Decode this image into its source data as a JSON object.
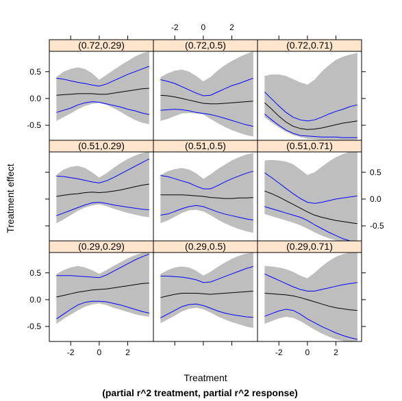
{
  "chart_data": {
    "type": "line",
    "layout": "3x3 trellis",
    "xlabel": "Treatment",
    "xlabel_sub": "(partial r^2 treatment, partial r^2 response)",
    "ylabel": "Treatment effect",
    "xlim": [
      -3.5,
      3.8
    ],
    "ylim": [
      -0.78,
      0.88
    ],
    "x_ticks": [
      -2,
      0,
      2
    ],
    "y_ticks": [
      -0.5,
      0.0,
      0.5
    ],
    "x_tick_labels": [
      "-2",
      "0",
      "2"
    ],
    "y_tick_labels": [
      "-0.5",
      "0.0",
      "0.5"
    ],
    "colors": {
      "band": "#bebebe",
      "estimate": "#000000",
      "bounds": "#0000ff",
      "strip": "#ffe5cc"
    },
    "x": [
      -3.0,
      -2.5,
      -2.0,
      -1.5,
      -1.0,
      -0.5,
      0.0,
      0.5,
      1.0,
      1.5,
      2.0,
      2.5,
      3.0,
      3.5
    ],
    "panels": [
      {
        "strip": "(0.72,0.29)",
        "estimate": [
          0.06,
          0.07,
          0.08,
          0.09,
          0.09,
          0.09,
          0.08,
          0.08,
          0.1,
          0.12,
          0.14,
          0.16,
          0.18,
          0.19
        ],
        "upper": [
          0.38,
          0.36,
          0.33,
          0.3,
          0.28,
          0.25,
          0.23,
          0.27,
          0.33,
          0.39,
          0.45,
          0.5,
          0.55,
          0.6
        ],
        "lower": [
          -0.26,
          -0.22,
          -0.18,
          -0.12,
          -0.08,
          -0.06,
          -0.07,
          -0.1,
          -0.13,
          -0.16,
          -0.2,
          -0.23,
          -0.27,
          -0.3
        ],
        "band_upper": [
          0.4,
          0.5,
          0.55,
          0.58,
          0.55,
          0.47,
          0.35,
          0.44,
          0.53,
          0.62,
          0.7,
          0.78,
          0.84,
          0.88
        ],
        "band_lower": [
          -0.42,
          -0.35,
          -0.28,
          -0.2,
          -0.14,
          -0.1,
          -0.08,
          -0.12,
          -0.18,
          -0.25,
          -0.33,
          -0.4,
          -0.45,
          -0.48
        ]
      },
      {
        "strip": "(0.72,0.5)",
        "estimate": [
          0.06,
          0.05,
          0.03,
          0.0,
          -0.03,
          -0.06,
          -0.09,
          -0.1,
          -0.1,
          -0.09,
          -0.08,
          -0.07,
          -0.06,
          -0.05
        ],
        "upper": [
          0.35,
          0.32,
          0.28,
          0.22,
          0.16,
          0.1,
          0.05,
          0.06,
          0.12,
          0.18,
          0.24,
          0.28,
          0.33,
          0.38
        ],
        "lower": [
          -0.22,
          -0.21,
          -0.2,
          -0.21,
          -0.23,
          -0.26,
          -0.28,
          -0.3,
          -0.33,
          -0.37,
          -0.41,
          -0.45,
          -0.49,
          -0.52
        ],
        "band_upper": [
          0.4,
          0.47,
          0.52,
          0.54,
          0.5,
          0.42,
          0.32,
          0.4,
          0.52,
          0.62,
          0.7,
          0.77,
          0.83,
          0.88
        ],
        "band_lower": [
          -0.42,
          -0.38,
          -0.33,
          -0.28,
          -0.27,
          -0.28,
          -0.3,
          -0.38,
          -0.46,
          -0.53,
          -0.59,
          -0.64,
          -0.68,
          -0.71
        ]
      },
      {
        "strip": "(0.72,0.71)",
        "estimate": [
          -0.08,
          -0.2,
          -0.33,
          -0.44,
          -0.52,
          -0.56,
          -0.58,
          -0.57,
          -0.55,
          -0.52,
          -0.49,
          -0.46,
          -0.44,
          -0.42
        ],
        "upper": [
          0.12,
          -0.01,
          -0.14,
          -0.26,
          -0.35,
          -0.4,
          -0.42,
          -0.4,
          -0.35,
          -0.29,
          -0.24,
          -0.2,
          -0.15,
          -0.12
        ],
        "lower": [
          -0.29,
          -0.4,
          -0.5,
          -0.59,
          -0.65,
          -0.69,
          -0.7,
          -0.71,
          -0.72,
          -0.72,
          -0.72,
          -0.73,
          -0.73,
          -0.73
        ],
        "band_upper": [
          0.42,
          0.45,
          0.45,
          0.42,
          0.36,
          0.3,
          0.26,
          0.35,
          0.5,
          0.62,
          0.72,
          0.78,
          0.82,
          0.85
        ],
        "band_lower": [
          -0.35,
          -0.45,
          -0.54,
          -0.62,
          -0.68,
          -0.72,
          -0.75,
          -0.76,
          -0.77,
          -0.77,
          -0.77,
          -0.77,
          -0.77,
          -0.77
        ]
      },
      {
        "strip": "(0.51,0.29)",
        "estimate": [
          0.05,
          0.07,
          0.09,
          0.1,
          0.12,
          0.13,
          0.12,
          0.13,
          0.15,
          0.17,
          0.2,
          0.23,
          0.26,
          0.28
        ],
        "upper": [
          0.43,
          0.42,
          0.4,
          0.38,
          0.35,
          0.32,
          0.3,
          0.34,
          0.4,
          0.47,
          0.54,
          0.61,
          0.68,
          0.75
        ],
        "lower": [
          -0.31,
          -0.26,
          -0.21,
          -0.16,
          -0.11,
          -0.07,
          -0.06,
          -0.08,
          -0.11,
          -0.13,
          -0.15,
          -0.17,
          -0.19,
          -0.2
        ],
        "band_upper": [
          0.45,
          0.55,
          0.6,
          0.62,
          0.58,
          0.5,
          0.4,
          0.48,
          0.58,
          0.67,
          0.75,
          0.81,
          0.86,
          0.88
        ],
        "band_lower": [
          -0.45,
          -0.38,
          -0.3,
          -0.22,
          -0.16,
          -0.12,
          -0.1,
          -0.13,
          -0.18,
          -0.22,
          -0.26,
          -0.29,
          -0.32,
          -0.34
        ]
      },
      {
        "strip": "(0.51,0.5)",
        "estimate": [
          0.08,
          0.08,
          0.08,
          0.08,
          0.07,
          0.06,
          0.05,
          0.03,
          0.02,
          0.01,
          0.01,
          0.02,
          0.02,
          0.03
        ],
        "upper": [
          0.44,
          0.42,
          0.38,
          0.34,
          0.3,
          0.24,
          0.19,
          0.19,
          0.25,
          0.32,
          0.38,
          0.43,
          0.48,
          0.52
        ],
        "lower": [
          -0.3,
          -0.28,
          -0.23,
          -0.18,
          -0.14,
          -0.12,
          -0.14,
          -0.19,
          -0.24,
          -0.28,
          -0.31,
          -0.34,
          -0.37,
          -0.39
        ],
        "band_upper": [
          0.45,
          0.52,
          0.56,
          0.58,
          0.55,
          0.48,
          0.38,
          0.46,
          0.56,
          0.64,
          0.72,
          0.78,
          0.83,
          0.86
        ],
        "band_lower": [
          -0.45,
          -0.4,
          -0.33,
          -0.26,
          -0.21,
          -0.2,
          -0.23,
          -0.3,
          -0.38,
          -0.45,
          -0.51,
          -0.56,
          -0.6,
          -0.63
        ]
      },
      {
        "strip": "(0.51,0.71)",
        "estimate": [
          0.15,
          0.1,
          0.04,
          -0.03,
          -0.1,
          -0.17,
          -0.24,
          -0.3,
          -0.34,
          -0.37,
          -0.4,
          -0.42,
          -0.44,
          -0.46
        ],
        "upper": [
          0.49,
          0.4,
          0.3,
          0.2,
          0.1,
          0.01,
          -0.06,
          -0.08,
          -0.06,
          -0.03,
          0.0,
          0.02,
          0.04,
          0.06
        ],
        "lower": [
          -0.14,
          -0.18,
          -0.22,
          -0.26,
          -0.3,
          -0.34,
          -0.4,
          -0.48,
          -0.55,
          -0.62,
          -0.68,
          -0.74,
          -0.78,
          -0.8
        ],
        "band_upper": [
          0.72,
          0.73,
          0.72,
          0.7,
          0.65,
          0.55,
          0.45,
          0.5,
          0.6,
          0.7,
          0.78,
          0.84,
          0.88,
          0.88
        ],
        "band_lower": [
          -0.28,
          -0.32,
          -0.36,
          -0.4,
          -0.44,
          -0.49,
          -0.55,
          -0.62,
          -0.68,
          -0.73,
          -0.77,
          -0.8,
          -0.8,
          -0.8
        ]
      },
      {
        "strip": "(0.29,0.29)",
        "estimate": [
          0.05,
          0.08,
          0.11,
          0.14,
          0.16,
          0.18,
          0.19,
          0.2,
          0.22,
          0.24,
          0.26,
          0.28,
          0.3,
          0.31
        ],
        "upper": [
          0.45,
          0.45,
          0.45,
          0.44,
          0.43,
          0.42,
          0.41,
          0.46,
          0.53,
          0.6,
          0.67,
          0.74,
          0.8,
          0.85
        ],
        "lower": [
          -0.36,
          -0.27,
          -0.18,
          -0.1,
          -0.05,
          -0.03,
          -0.03,
          -0.04,
          -0.07,
          -0.1,
          -0.14,
          -0.18,
          -0.22,
          -0.25
        ],
        "band_upper": [
          0.48,
          0.55,
          0.6,
          0.63,
          0.6,
          0.55,
          0.48,
          0.55,
          0.63,
          0.7,
          0.77,
          0.83,
          0.87,
          0.88
        ],
        "band_lower": [
          -0.45,
          -0.36,
          -0.28,
          -0.2,
          -0.13,
          -0.09,
          -0.07,
          -0.1,
          -0.15,
          -0.19,
          -0.23,
          -0.27,
          -0.3,
          -0.32
        ]
      },
      {
        "strip": "(0.29,0.5)",
        "estimate": [
          0.04,
          0.07,
          0.1,
          0.12,
          0.12,
          0.12,
          0.11,
          0.1,
          0.11,
          0.12,
          0.13,
          0.14,
          0.15,
          0.16
        ],
        "upper": [
          0.44,
          0.44,
          0.43,
          0.42,
          0.4,
          0.37,
          0.32,
          0.33,
          0.38,
          0.43,
          0.48,
          0.53,
          0.58,
          0.62
        ],
        "lower": [
          -0.34,
          -0.27,
          -0.2,
          -0.13,
          -0.09,
          -0.08,
          -0.11,
          -0.16,
          -0.21,
          -0.25,
          -0.28,
          -0.3,
          -0.32,
          -0.33
        ],
        "band_upper": [
          0.48,
          0.55,
          0.6,
          0.62,
          0.6,
          0.54,
          0.45,
          0.52,
          0.61,
          0.69,
          0.76,
          0.82,
          0.86,
          0.88
        ],
        "band_lower": [
          -0.44,
          -0.37,
          -0.3,
          -0.22,
          -0.17,
          -0.15,
          -0.18,
          -0.24,
          -0.31,
          -0.37,
          -0.42,
          -0.46,
          -0.5,
          -0.53
        ]
      },
      {
        "strip": "(0.29,0.71)",
        "estimate": [
          0.12,
          0.11,
          0.1,
          0.09,
          0.07,
          0.04,
          0.0,
          -0.04,
          -0.08,
          -0.12,
          -0.15,
          -0.17,
          -0.19,
          -0.2
        ],
        "upper": [
          0.48,
          0.42,
          0.36,
          0.3,
          0.24,
          0.19,
          0.16,
          0.16,
          0.19,
          0.22,
          0.25,
          0.28,
          0.3,
          0.32
        ],
        "lower": [
          -0.31,
          -0.26,
          -0.21,
          -0.18,
          -0.2,
          -0.27,
          -0.36,
          -0.43,
          -0.5,
          -0.56,
          -0.62,
          -0.67,
          -0.71,
          -0.74
        ],
        "band_upper": [
          0.63,
          0.62,
          0.6,
          0.57,
          0.52,
          0.45,
          0.4,
          0.5,
          0.62,
          0.72,
          0.8,
          0.85,
          0.88,
          0.88
        ],
        "band_lower": [
          -0.45,
          -0.4,
          -0.35,
          -0.32,
          -0.34,
          -0.4,
          -0.48,
          -0.56,
          -0.63,
          -0.69,
          -0.74,
          -0.77,
          -0.8,
          -0.8
        ]
      }
    ]
  }
}
